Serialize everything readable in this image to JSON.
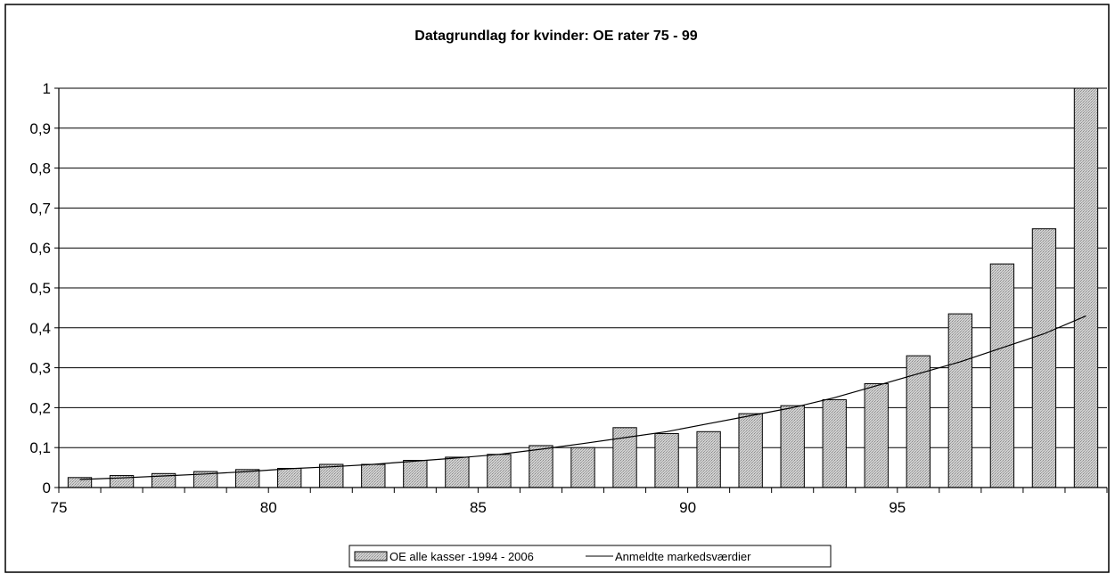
{
  "chart_data": {
    "type": "bar",
    "title": "Datagrundlag for kvinder: OE rater 75 - 99",
    "xlabel": "",
    "ylabel": "",
    "x": [
      75,
      76,
      77,
      78,
      79,
      80,
      81,
      82,
      83,
      84,
      85,
      86,
      87,
      88,
      89,
      90,
      91,
      92,
      93,
      94,
      95,
      96,
      97,
      98,
      99
    ],
    "x_ticks": [
      "75",
      "80",
      "85",
      "90",
      "95"
    ],
    "y_ticks": [
      "0",
      "0,1",
      "0,2",
      "0,3",
      "0,4",
      "0,5",
      "0,6",
      "0,7",
      "0,8",
      "0,9",
      "1"
    ],
    "ylim": [
      0,
      1
    ],
    "grid": true,
    "legend_position": "bottom",
    "series": [
      {
        "name": "OE alle kasser -1994 - 2006",
        "type": "bar",
        "color": "#c8c8c8",
        "values": [
          0.025,
          0.03,
          0.035,
          0.04,
          0.045,
          0.048,
          0.058,
          0.058,
          0.068,
          0.076,
          0.083,
          0.105,
          0.1,
          0.15,
          0.135,
          0.14,
          0.185,
          0.205,
          0.22,
          0.26,
          0.33,
          0.435,
          0.56,
          0.648,
          1.0
        ]
      },
      {
        "name": "Anmeldte markedsværdier",
        "type": "line",
        "color": "#000000",
        "values": [
          0.02,
          0.024,
          0.029,
          0.034,
          0.04,
          0.047,
          0.052,
          0.058,
          0.066,
          0.074,
          0.083,
          0.096,
          0.11,
          0.125,
          0.14,
          0.16,
          0.18,
          0.2,
          0.225,
          0.255,
          0.285,
          0.315,
          0.35,
          0.385,
          0.43
        ]
      }
    ]
  }
}
